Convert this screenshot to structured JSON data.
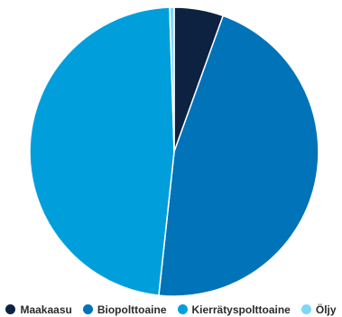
{
  "chart_data": {
    "type": "pie",
    "title": "",
    "categories": [
      "Maakaasu",
      "Biopolttoaine",
      "Kierrätyspolttoaine",
      "Öljy"
    ],
    "values": [
      5.5,
      46.2,
      47.8,
      0.5
    ],
    "colors": [
      "#0c2240",
      "#0073b9",
      "#009fdc",
      "#7fd6f5"
    ],
    "legend": "bottom"
  }
}
